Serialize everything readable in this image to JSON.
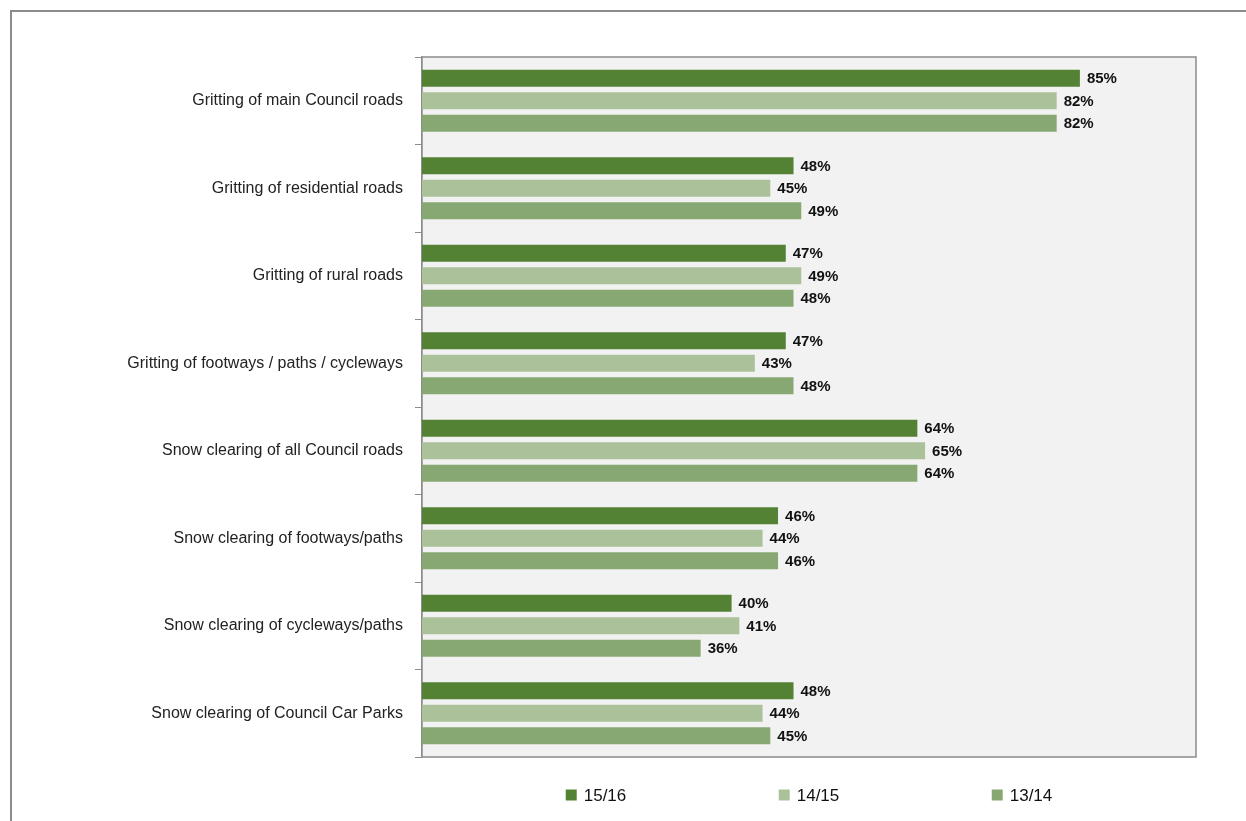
{
  "chart_data": {
    "type": "bar",
    "orientation": "horizontal",
    "categories": [
      "Gritting of main Council roads",
      "Gritting of residential roads",
      "Gritting of rural roads",
      "Gritting of footways / paths / cycleways",
      "Snow clearing of all Council roads",
      "Snow clearing of footways/paths",
      "Snow clearing of cycleways/paths",
      "Snow clearing of Council Car Parks"
    ],
    "series": [
      {
        "name": "15/16",
        "color": "#548235",
        "values": [
          85,
          48,
          47,
          47,
          64,
          46,
          40,
          48
        ],
        "value_labels": [
          "85%",
          "48%",
          "47%",
          "47%",
          "64%",
          "46%",
          "40%",
          "48%"
        ]
      },
      {
        "name": "14/15",
        "color": "#aac19a",
        "values": [
          82,
          45,
          49,
          43,
          65,
          44,
          41,
          44
        ],
        "value_labels": [
          "82%",
          "45%",
          "49%",
          "43%",
          "65%",
          "44%",
          "41%",
          "44%"
        ]
      },
      {
        "name": "13/14",
        "color": "#87a872",
        "values": [
          82,
          49,
          48,
          48,
          64,
          46,
          36,
          45
        ],
        "value_labels": [
          "82%",
          "49%",
          "48%",
          "48%",
          "64%",
          "46%",
          "36%",
          "45%"
        ]
      }
    ],
    "xlim": [
      0,
      100
    ],
    "tick_labels": "y",
    "legend": "bottom"
  }
}
